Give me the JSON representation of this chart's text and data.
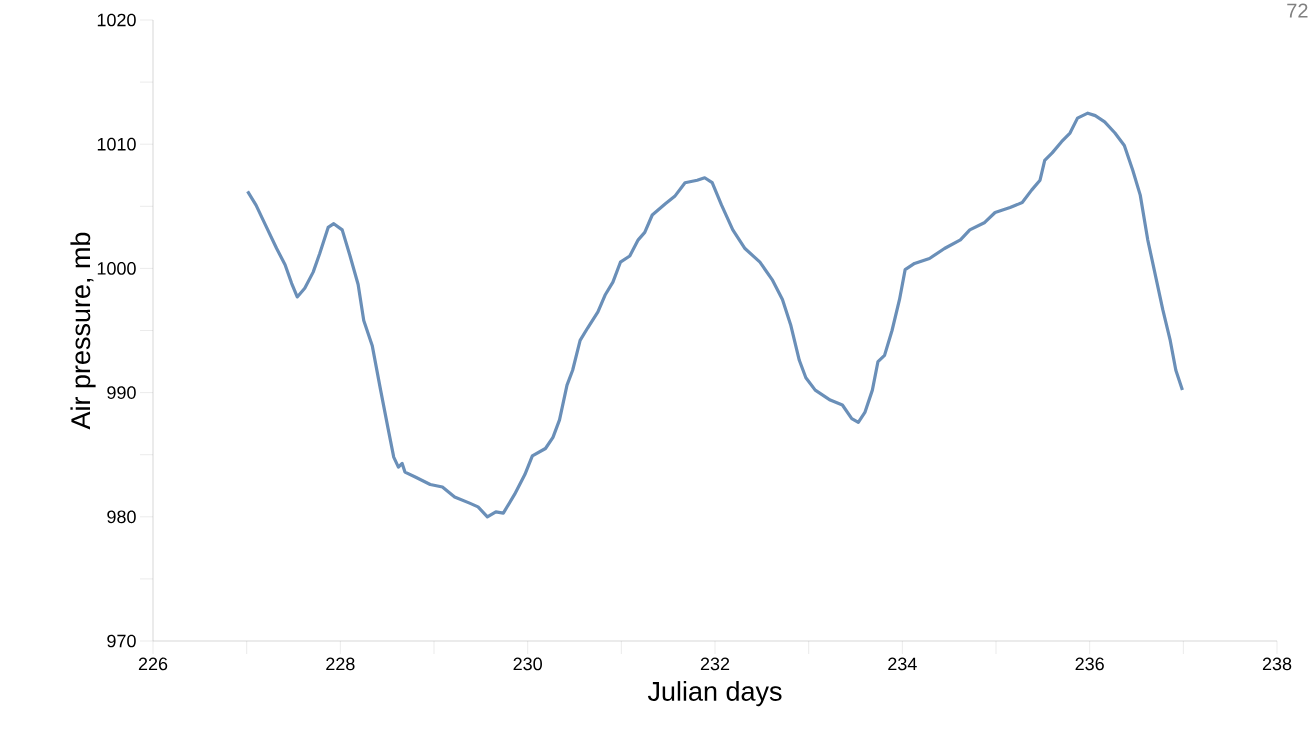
{
  "chart_data": {
    "type": "line",
    "xlabel": "Julian days",
    "ylabel": "Air pressure, mb",
    "annotations": [
      "72"
    ],
    "xlim": [
      226,
      238
    ],
    "ylim": [
      970,
      1020
    ],
    "xticks": [
      226,
      {
        "value": 227,
        "label": null
      },
      228,
      {
        "value": 229,
        "label": null
      },
      230,
      {
        "value": 231,
        "label": null
      },
      232,
      {
        "value": 233,
        "label": null
      },
      234,
      {
        "value": 235,
        "label": null
      },
      236,
      {
        "value": 237,
        "label": null
      },
      238
    ],
    "yticks": [
      970,
      {
        "value": 975,
        "label": null
      },
      980,
      {
        "value": 985,
        "label": null
      },
      990,
      {
        "value": 995,
        "label": null
      },
      1000,
      {
        "value": 1005,
        "label": null
      },
      1010,
      {
        "value": 1015,
        "label": null
      },
      1020
    ],
    "grid": false,
    "marker": "none",
    "line_style": "solid",
    "series": [
      {
        "color": "#6a8fb8",
        "x": [
          227.01,
          227.1,
          227.2,
          227.32,
          227.41,
          227.48,
          227.54,
          227.62,
          227.71,
          227.78,
          227.87,
          227.93,
          228.02,
          228.1,
          228.19,
          228.25,
          228.34,
          228.43,
          228.51,
          228.57,
          228.62,
          228.66,
          228.69,
          228.8,
          228.96,
          229.09,
          229.22,
          229.38,
          229.47,
          229.57,
          229.66,
          229.74,
          229.86,
          229.97,
          230.05,
          230.19,
          230.27,
          230.34,
          230.42,
          230.48,
          230.56,
          230.64,
          230.75,
          230.83,
          230.91,
          230.99,
          231.09,
          231.18,
          231.25,
          231.33,
          231.47,
          231.57,
          231.68,
          231.81,
          231.89,
          231.97,
          232.07,
          232.19,
          232.32,
          232.48,
          232.61,
          232.72,
          232.81,
          232.9,
          232.97,
          233.07,
          233.23,
          233.36,
          233.46,
          233.53,
          233.6,
          233.68,
          233.74,
          233.81,
          233.89,
          233.97,
          234.03,
          234.13,
          234.29,
          234.45,
          234.62,
          234.72,
          234.88,
          234.99,
          235.15,
          235.28,
          235.38,
          235.47,
          235.52,
          235.6,
          235.7,
          235.79,
          235.87,
          235.98,
          236.06,
          236.16,
          236.27,
          236.37,
          236.46,
          236.54,
          236.62,
          236.7,
          236.78,
          236.86,
          236.92,
          236.99
        ],
        "values": [
          1006.2,
          1005.1,
          1003.5,
          1001.6,
          1000.3,
          998.8,
          997.7,
          998.4,
          999.7,
          1001.2,
          1003.3,
          1003.6,
          1003.1,
          1001.1,
          998.7,
          995.8,
          993.8,
          990.2,
          987.1,
          984.8,
          984.0,
          984.3,
          983.6,
          983.2,
          982.6,
          982.4,
          981.6,
          981.1,
          980.8,
          980.0,
          980.4,
          980.3,
          981.8,
          983.4,
          984.9,
          985.5,
          986.4,
          987.8,
          990.6,
          991.8,
          994.2,
          995.2,
          996.5,
          997.9,
          998.9,
          1000.5,
          1001.0,
          1002.3,
          1002.9,
          1004.3,
          1005.2,
          1005.8,
          1006.9,
          1007.1,
          1007.3,
          1006.9,
          1005.1,
          1003.1,
          1001.6,
          1000.5,
          999.1,
          997.5,
          995.4,
          992.6,
          991.2,
          990.2,
          989.4,
          989.0,
          987.9,
          987.6,
          988.4,
          990.2,
          992.5,
          993.0,
          995.0,
          997.5,
          999.9,
          1000.4,
          1000.8,
          1001.6,
          1002.3,
          1003.1,
          1003.7,
          1004.5,
          1004.9,
          1005.3,
          1006.3,
          1007.1,
          1008.7,
          1009.3,
          1010.2,
          1010.9,
          1012.1,
          1012.5,
          1012.3,
          1011.8,
          1010.9,
          1009.9,
          1007.9,
          1005.9,
          1002.3,
          999.5,
          996.7,
          994.2,
          991.8,
          990.2
        ]
      }
    ]
  }
}
